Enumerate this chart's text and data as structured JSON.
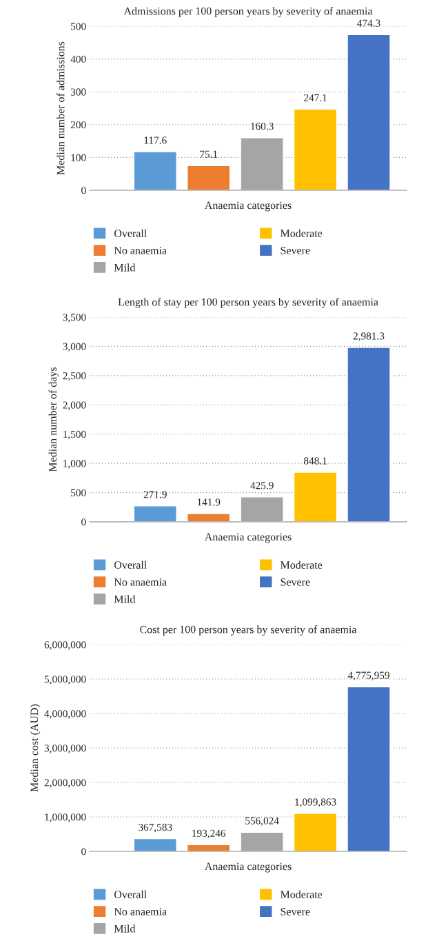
{
  "chart_data": [
    {
      "type": "bar",
      "title": "Admissions per 100 person years by severity of anaemia",
      "xlabel": "Anaemia categories",
      "ylabel": "Median number of admissions",
      "categories": [
        null
      ],
      "series": [
        {
          "name": "Overall",
          "color": "#5b9bd5",
          "values": [
            117.6
          ],
          "value_labels": [
            "117.6"
          ]
        },
        {
          "name": "No anaemia",
          "color": "#ed7d31",
          "values": [
            75.1
          ],
          "value_labels": [
            "75.1"
          ]
        },
        {
          "name": "Mild",
          "color": "#a5a5a5",
          "values": [
            160.3
          ],
          "value_labels": [
            "160.3"
          ]
        },
        {
          "name": "Moderate",
          "color": "#ffc000",
          "values": [
            247.1
          ],
          "value_labels": [
            "247.1"
          ]
        },
        {
          "name": "Severe",
          "color": "#4472c4",
          "values": [
            474.3
          ],
          "value_labels": [
            "474.3"
          ]
        }
      ],
      "ylim": [
        0,
        500
      ],
      "yticks": [
        0,
        100,
        200,
        300,
        400,
        500
      ],
      "grid": "y",
      "legend": "bottom"
    },
    {
      "type": "bar",
      "title": "Length of stay per 100 person years by severity of anaemia",
      "xlabel": "Anaemia categories",
      "ylabel": "Median number of days",
      "categories": [
        null
      ],
      "series": [
        {
          "name": "Overall",
          "color": "#5b9bd5",
          "values": [
            271.9
          ],
          "value_labels": [
            "271.9"
          ]
        },
        {
          "name": "No anaemia",
          "color": "#ed7d31",
          "values": [
            141.9
          ],
          "value_labels": [
            "141.9"
          ]
        },
        {
          "name": "Mild",
          "color": "#a5a5a5",
          "values": [
            425.9
          ],
          "value_labels": [
            "425.9"
          ]
        },
        {
          "name": "Moderate",
          "color": "#ffc000",
          "values": [
            848.1
          ],
          "value_labels": [
            "848.1"
          ]
        },
        {
          "name": "Severe",
          "color": "#4472c4",
          "values": [
            2981.3
          ],
          "value_labels": [
            "2,981.3"
          ]
        }
      ],
      "ylim": [
        0,
        3500
      ],
      "yticks": [
        0,
        500,
        {
          "value": 1000,
          "label": "1,000"
        },
        {
          "value": 1500,
          "label": "1,500"
        },
        {
          "value": 2000,
          "label": "2,000"
        },
        {
          "value": 2500,
          "label": "2,500"
        },
        {
          "value": 3000,
          "label": "3,000"
        },
        {
          "value": 3500,
          "label": "3,500"
        }
      ],
      "grid": "y",
      "legend": "bottom"
    },
    {
      "type": "bar",
      "title": "Cost per 100 person years by severity of anaemia",
      "xlabel": "Anaemia categories",
      "ylabel": "Median cost (AUD)",
      "categories": [
        null
      ],
      "series": [
        {
          "name": "Overall",
          "color": "#5b9bd5",
          "values": [
            367583
          ],
          "value_labels": [
            "367,583"
          ]
        },
        {
          "name": "No anaemia",
          "color": "#ed7d31",
          "values": [
            193246
          ],
          "value_labels": [
            "193,246"
          ]
        },
        {
          "name": "Mild",
          "color": "#a5a5a5",
          "values": [
            556024
          ],
          "value_labels": [
            "556,024"
          ]
        },
        {
          "name": "Moderate",
          "color": "#ffc000",
          "values": [
            1099863
          ],
          "value_labels": [
            "1,099,863"
          ]
        },
        {
          "name": "Severe",
          "color": "#4472c4",
          "values": [
            4775959
          ],
          "value_labels": [
            "4,775,959"
          ]
        }
      ],
      "ylim": [
        0,
        6000000
      ],
      "yticks": [
        0,
        {
          "value": 1000000,
          "label": "1,000,000"
        },
        {
          "value": 2000000,
          "label": "2,000,000"
        },
        {
          "value": 3000000,
          "label": "3,000,000"
        },
        {
          "value": 4000000,
          "label": "4,000,000"
        },
        {
          "value": 5000000,
          "label": "5,000,000"
        },
        {
          "value": 6000000,
          "label": "6,000,000"
        }
      ],
      "grid": "y",
      "legend": "bottom"
    }
  ]
}
